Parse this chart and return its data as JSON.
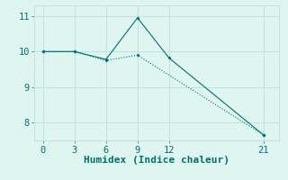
{
  "line1_x": [
    0,
    3,
    6,
    9,
    12,
    21
  ],
  "line1_y": [
    10.0,
    10.0,
    9.78,
    10.95,
    9.82,
    7.65
  ],
  "line2_x": [
    0,
    3,
    6,
    9,
    21
  ],
  "line2_y": [
    10.0,
    10.0,
    9.75,
    9.9,
    7.65
  ],
  "color": "#007070",
  "background_color": "#dff5f0",
  "grid_color": "#c0e5e0",
  "xlabel": "Humidex (Indice chaleur)",
  "xlim": [
    -0.8,
    22.5
  ],
  "ylim": [
    7.5,
    11.3
  ],
  "xticks": [
    0,
    3,
    6,
    9,
    12,
    21
  ],
  "yticks": [
    8,
    9,
    10,
    11
  ],
  "xlabel_fontsize": 8,
  "tick_fontsize": 7.5
}
